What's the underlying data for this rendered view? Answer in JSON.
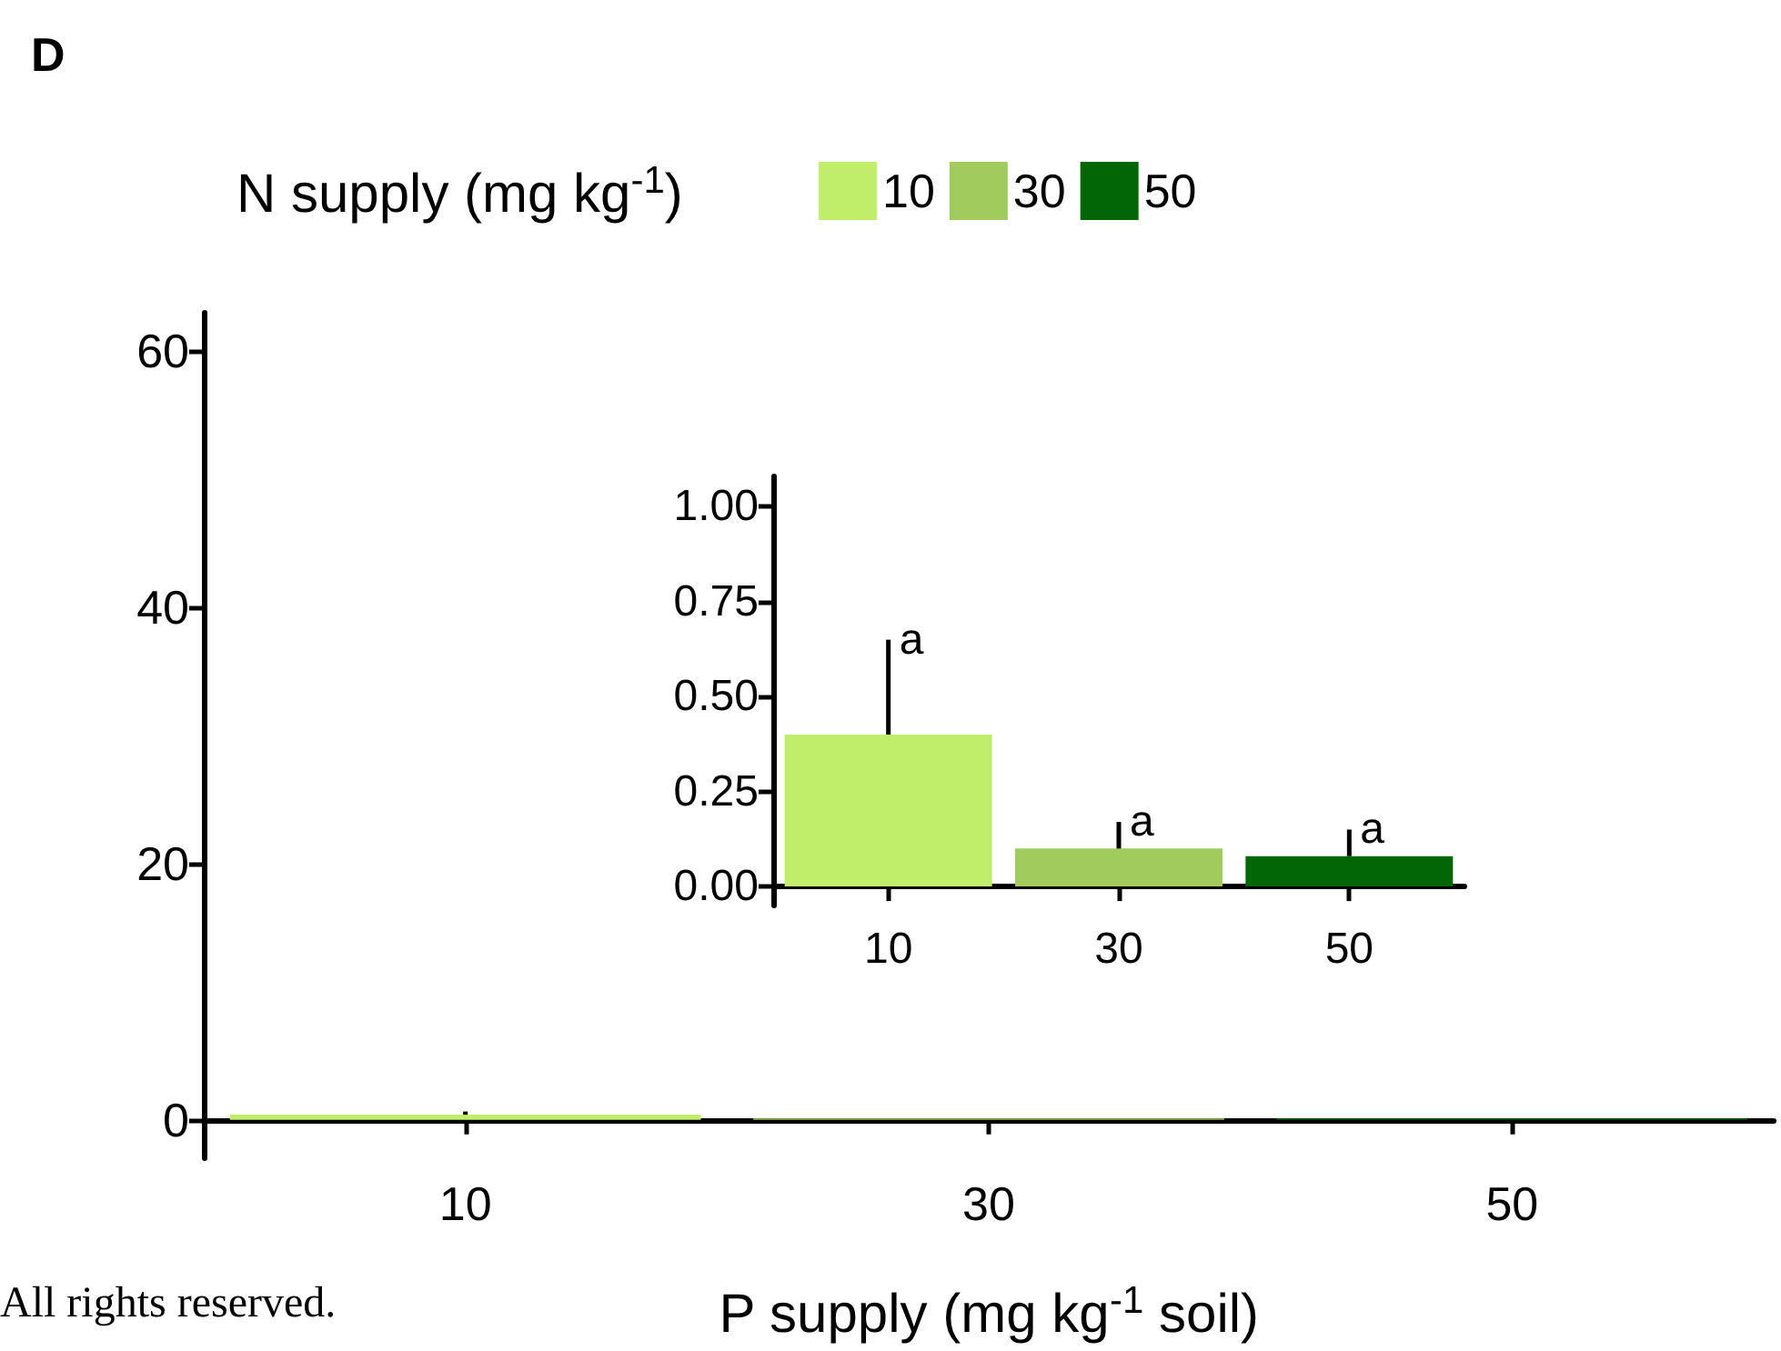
{
  "chart_data": [
    {
      "type": "bar",
      "title": "D",
      "legend_title": "N supply (mg kg$^{-1}$)",
      "xlabel": "P supply (mg kg$^{-1}$ soil)",
      "categories": [
        "10",
        "30",
        "50"
      ],
      "legend": "top left",
      "ylim": [
        -3,
        63
      ],
      "yticks": [
        0,
        20,
        40,
        60
      ],
      "annotations": [
        "All rights reserved."
      ],
      "series": [
        {
          "name": "10",
          "color": "#c0ed6a",
          "values": [
            0.4,
            null,
            null
          ],
          "errors": [
            [
              0.4,
              0.65
            ],
            null,
            null
          ]
        },
        {
          "name": "30",
          "color": "#a2cb5e",
          "values": [
            null,
            0.1,
            null
          ]
        },
        {
          "name": "50",
          "color": "#036604",
          "values": [
            null,
            null,
            0.1
          ]
        }
      ]
    },
    {
      "type": "bar",
      "categories": [
        "10",
        "30",
        "50"
      ],
      "ylim": [
        -0.05,
        1.08
      ],
      "yticks": [
        {
          "value": 0,
          "label": "0.00"
        },
        {
          "value": 0.25,
          "label": "0.25"
        },
        {
          "value": 0.5,
          "label": "0.50"
        },
        {
          "value": 0.75,
          "label": "0.75"
        },
        {
          "value": 1,
          "label": "1.00"
        }
      ],
      "annotations": [
        {
          "text": "a",
          "x": "10",
          "y": 0.65
        },
        {
          "text": "a",
          "x": "30",
          "y": 0.17
        },
        {
          "text": "a",
          "x": "50",
          "y": 0.15
        }
      ],
      "series": [
        {
          "color": "#c0ed6a",
          "values": [
            0.4,
            null,
            null
          ],
          "errors": [
            [
              0.4,
              0.65
            ],
            null,
            null
          ]
        },
        {
          "color": "#a2cb5e",
          "values": [
            null,
            0.1,
            null
          ],
          "errors": [
            null,
            [
              0.1,
              0.17
            ],
            null
          ]
        },
        {
          "color": "#036604",
          "values": [
            null,
            null,
            0.08
          ],
          "errors": [
            null,
            null,
            [
              0.08,
              0.15
            ]
          ]
        }
      ]
    }
  ]
}
